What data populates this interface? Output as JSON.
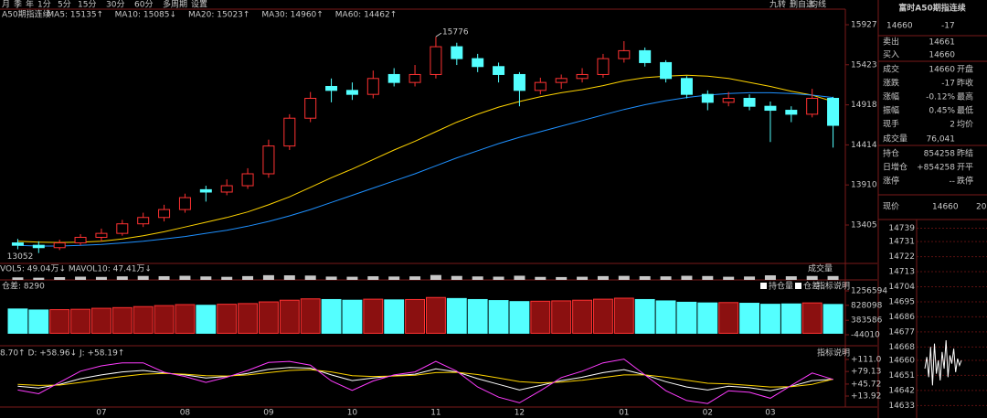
{
  "toolbar": {
    "periods": [
      "月",
      "季",
      "年",
      "1分",
      "5分",
      "15分",
      "30分",
      "60分",
      "多周期",
      "设置"
    ],
    "actions": [
      "九转",
      "删自选",
      "均线"
    ]
  },
  "chart_data": [
    {
      "type": "candlestick",
      "legend": [
        "A50期指连续",
        "MA5: 15135↑",
        "MA10: 15085↓",
        "MA20: 15023↑",
        "MA30: 14960↑",
        "MA60: 14462↑"
      ],
      "categories": [
        null,
        null,
        null,
        null,
        "07",
        null,
        null,
        null,
        "08",
        null,
        null,
        null,
        "09",
        null,
        null,
        null,
        "10",
        null,
        null,
        null,
        "11",
        null,
        null,
        null,
        "12",
        null,
        null,
        null,
        null,
        "01",
        null,
        null,
        null,
        "02",
        null,
        null,
        "03",
        null,
        null,
        null
      ],
      "ohlc": [
        [
          13180,
          13230,
          13100,
          13150
        ],
        [
          13150,
          13200,
          13052,
          13120
        ],
        [
          13120,
          13220,
          13090,
          13180
        ],
        [
          13180,
          13290,
          13150,
          13250
        ],
        [
          13250,
          13360,
          13200,
          13300
        ],
        [
          13300,
          13470,
          13270,
          13420
        ],
        [
          13420,
          13560,
          13380,
          13500
        ],
        [
          13500,
          13660,
          13450,
          13600
        ],
        [
          13600,
          13800,
          13560,
          13750
        ],
        [
          13850,
          13900,
          13700,
          13820
        ],
        [
          13820,
          13980,
          13780,
          13900
        ],
        [
          13900,
          14120,
          13860,
          14050
        ],
        [
          14050,
          14480,
          14000,
          14400
        ],
        [
          14400,
          14800,
          14350,
          14750
        ],
        [
          14750,
          15080,
          14700,
          15000
        ],
        [
          15150,
          15250,
          14950,
          15100
        ],
        [
          15100,
          15200,
          14980,
          15050
        ],
        [
          15050,
          15350,
          15000,
          15250
        ],
        [
          15300,
          15380,
          15150,
          15200
        ],
        [
          15200,
          15420,
          15150,
          15300
        ],
        [
          15300,
          15776,
          15250,
          15650
        ],
        [
          15650,
          15700,
          15420,
          15500
        ],
        [
          15500,
          15560,
          15330,
          15400
        ],
        [
          15400,
          15450,
          15200,
          15300
        ],
        [
          15300,
          15330,
          14900,
          15100
        ],
        [
          15100,
          15260,
          15050,
          15200
        ],
        [
          15200,
          15300,
          15120,
          15250
        ],
        [
          15250,
          15380,
          15200,
          15300
        ],
        [
          15300,
          15560,
          15260,
          15500
        ],
        [
          15500,
          15720,
          15450,
          15600
        ],
        [
          15600,
          15640,
          15400,
          15450
        ],
        [
          15450,
          15480,
          15200,
          15250
        ],
        [
          15250,
          15280,
          15000,
          15050
        ],
        [
          15050,
          15100,
          14850,
          14950
        ],
        [
          14950,
          15080,
          14900,
          15000
        ],
        [
          15000,
          15050,
          14850,
          14900
        ],
        [
          14900,
          14960,
          14450,
          14850
        ],
        [
          14850,
          14900,
          14700,
          14800
        ],
        [
          14800,
          15120,
          14760,
          15000
        ],
        [
          15000,
          15020,
          14380,
          14660
        ]
      ],
      "up_color": "#ff3232",
      "down_color": "#54ffff",
      "series": [
        {
          "color": "#ffd400",
          "values": [
            13200,
            13190,
            13185,
            13190,
            13200,
            13230,
            13270,
            13320,
            13380,
            13440,
            13500,
            13570,
            13660,
            13760,
            13880,
            14000,
            14110,
            14230,
            14350,
            14460,
            14580,
            14700,
            14800,
            14890,
            14960,
            15020,
            15070,
            15110,
            15160,
            15220,
            15260,
            15280,
            15290,
            15280,
            15250,
            15200,
            15150,
            15090,
            15040,
            14960
          ]
        },
        {
          "color": "#1e90ff",
          "values": [
            13150,
            13140,
            13140,
            13150,
            13160,
            13180,
            13200,
            13230,
            13260,
            13300,
            13340,
            13390,
            13450,
            13520,
            13600,
            13690,
            13780,
            13870,
            13960,
            14050,
            14150,
            14250,
            14340,
            14430,
            14510,
            14580,
            14650,
            14720,
            14790,
            14860,
            14920,
            14970,
            15010,
            15040,
            15060,
            15070,
            15070,
            15060,
            15040,
            15010
          ]
        }
      ],
      "high_label": 15776,
      "low_label": 13052,
      "ylim": [
        12933,
        16123
      ],
      "yticks": [
        15927,
        15423,
        14918,
        14414,
        13910,
        13405
      ]
    },
    {
      "type": "bar",
      "header": "VOL5: 49.04万↓  MAVOL10: 47.41万↓",
      "button": "成交量",
      "color": "#c8c8c8",
      "values": [
        32,
        28,
        35,
        41,
        38,
        45,
        50,
        47,
        52,
        44,
        39,
        48,
        60,
        58,
        55,
        42,
        40,
        46,
        43,
        45,
        62,
        50,
        44,
        41,
        53,
        38,
        36,
        40,
        48,
        51,
        47,
        45,
        52,
        49,
        40,
        43,
        58,
        46,
        50,
        49
      ],
      "ylim": [
        0,
        70
      ]
    },
    {
      "type": "bar",
      "header": "仓差: 8290",
      "checkboxes": [
        "持仓量",
        "仓差"
      ],
      "button": "指标说明",
      "values": [
        720000,
        690000,
        700000,
        710000,
        740000,
        760000,
        790000,
        820000,
        850000,
        830000,
        860000,
        880000,
        930000,
        980000,
        1020000,
        1000000,
        980000,
        1010000,
        990000,
        1000000,
        1060000,
        1030000,
        1000000,
        970000,
        940000,
        950000,
        960000,
        980000,
        1010000,
        1040000,
        1000000,
        960000,
        920000,
        900000,
        910000,
        890000,
        860000,
        870000,
        900000,
        854258
      ],
      "ylim": [
        -152394,
        1419170
      ],
      "yticks": [
        1256594,
        828098,
        383586,
        -44010
      ]
    },
    {
      "type": "line",
      "header": "8.70↑  D: +58.96↓  J: +58.19↑",
      "button": "指标说明",
      "series": [
        {
          "color": "#ffffff",
          "values": [
            40,
            35,
            45,
            60,
            70,
            78,
            82,
            75,
            70,
            62,
            66,
            74,
            85,
            90,
            88,
            70,
            55,
            62,
            68,
            72,
            86,
            78,
            60,
            45,
            30,
            42,
            55,
            64,
            76,
            84,
            70,
            52,
            38,
            30,
            40,
            36,
            28,
            40,
            55,
            58.7
          ]
        },
        {
          "color": "#ffd400",
          "values": [
            45,
            42,
            43,
            50,
            58,
            66,
            72,
            74,
            72,
            68,
            67,
            70,
            76,
            82,
            84,
            78,
            68,
            66,
            67,
            69,
            76,
            77,
            71,
            62,
            52,
            49,
            51,
            56,
            63,
            70,
            70,
            64,
            56,
            48,
            46,
            42,
            38,
            39,
            45,
            58.96
          ]
        },
        {
          "color": "#ff3cff",
          "values": [
            30,
            20,
            50,
            80,
            94,
            102,
            102,
            77,
            66,
            50,
            64,
            82,
            103,
            106,
            96,
            54,
            29,
            54,
            70,
            78,
            106,
            80,
            38,
            11,
            -4,
            28,
            63,
            80,
            102,
            112,
            70,
            28,
            2,
            -6,
            28,
            24,
            8,
            42,
            75,
            58.19
          ]
        }
      ],
      "ylim": [
        -7.9,
        135.3
      ],
      "yticks": [
        {
          "value": 111.0,
          "label": "+111.0"
        },
        {
          "value": 79.13,
          "label": "+79.13"
        },
        {
          "value": 45.72,
          "label": "+45.72"
        },
        {
          "value": 13.92,
          "label": "+13.92"
        }
      ]
    },
    {
      "type": "line",
      "header": [
        "现价",
        "14660",
        "20"
      ],
      "color": "#ffffff",
      "values": [
        14655,
        14662,
        14650,
        14668,
        14645,
        14670,
        14652,
        14660,
        14648,
        14665,
        14655,
        14672,
        14650,
        14663,
        14658,
        14667,
        14653,
        14661,
        14657,
        14660
      ],
      "ylim": [
        14631,
        14742
      ],
      "yticks": [
        14739,
        14731,
        14722,
        14713,
        14704,
        14695,
        14686,
        14677,
        14668,
        14660,
        14651,
        14642,
        14633
      ]
    }
  ],
  "quote": {
    "title": "富时A50期指连续",
    "price": 14660,
    "change": -17,
    "rows": [
      [
        "卖出",
        "14661"
      ],
      [
        "买入",
        "14660"
      ],
      [
        "成交",
        "14660",
        "开盘"
      ],
      [
        "涨跌",
        "-17",
        "昨收"
      ],
      [
        "涨幅",
        "-0.12%",
        "最高"
      ],
      [
        "振幅",
        "0.45%",
        "最低"
      ],
      [
        "现手",
        "2",
        "均价"
      ],
      [
        "成交量",
        "76,041"
      ],
      [
        "持仓",
        "854258",
        "昨结"
      ],
      [
        "日增仓",
        "+854258",
        "开平"
      ],
      [
        "涨停",
        "--",
        "跌停"
      ]
    ]
  }
}
